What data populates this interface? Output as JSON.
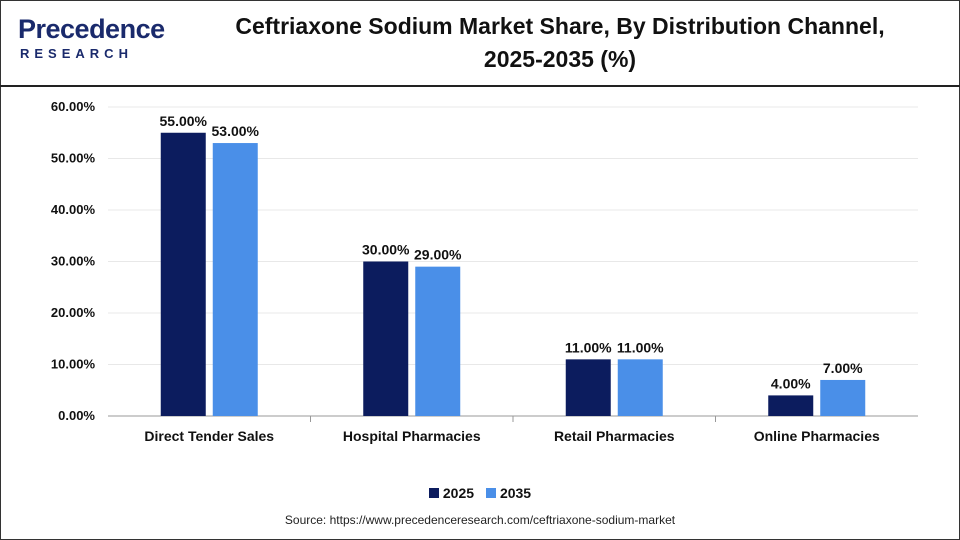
{
  "brand": {
    "name": "Precedence",
    "sub": "RESEARCH"
  },
  "title_line1": "Ceftriaxone Sodium Market Share, By Distribution Channel,",
  "title_line2": "2025-2035 (%)",
  "source": "Source: https://www.precedenceresearch.com/ceftriaxone-sodium-market",
  "colors": {
    "series_2025": "#0c1c5e",
    "series_2035": "#4a8fe8",
    "grid": "#e8e8e8",
    "axis": "#999999"
  },
  "chart_data": {
    "type": "bar",
    "title": "Ceftriaxone Sodium Market Share, By Distribution Channel, 2025-2035 (%)",
    "categories": [
      "Direct Tender Sales",
      "Hospital Pharmacies",
      "Retail Pharmacies",
      "Online Pharmacies"
    ],
    "series": [
      {
        "name": "2025",
        "values": [
          55.0,
          30.0,
          11.0,
          4.0
        ],
        "labels": [
          "55.00%",
          "30.00%",
          "11.00%",
          "4.00%"
        ]
      },
      {
        "name": "2035",
        "values": [
          53.0,
          29.0,
          11.0,
          7.0
        ],
        "labels": [
          "53.00%",
          "29.00%",
          "11.00%",
          "7.00%"
        ]
      }
    ],
    "yticks": [
      "0.00%",
      "10.00%",
      "20.00%",
      "30.00%",
      "40.00%",
      "50.00%",
      "60.00%"
    ],
    "ylim": [
      0,
      60
    ],
    "grid": true,
    "legend_position": "bottom"
  }
}
